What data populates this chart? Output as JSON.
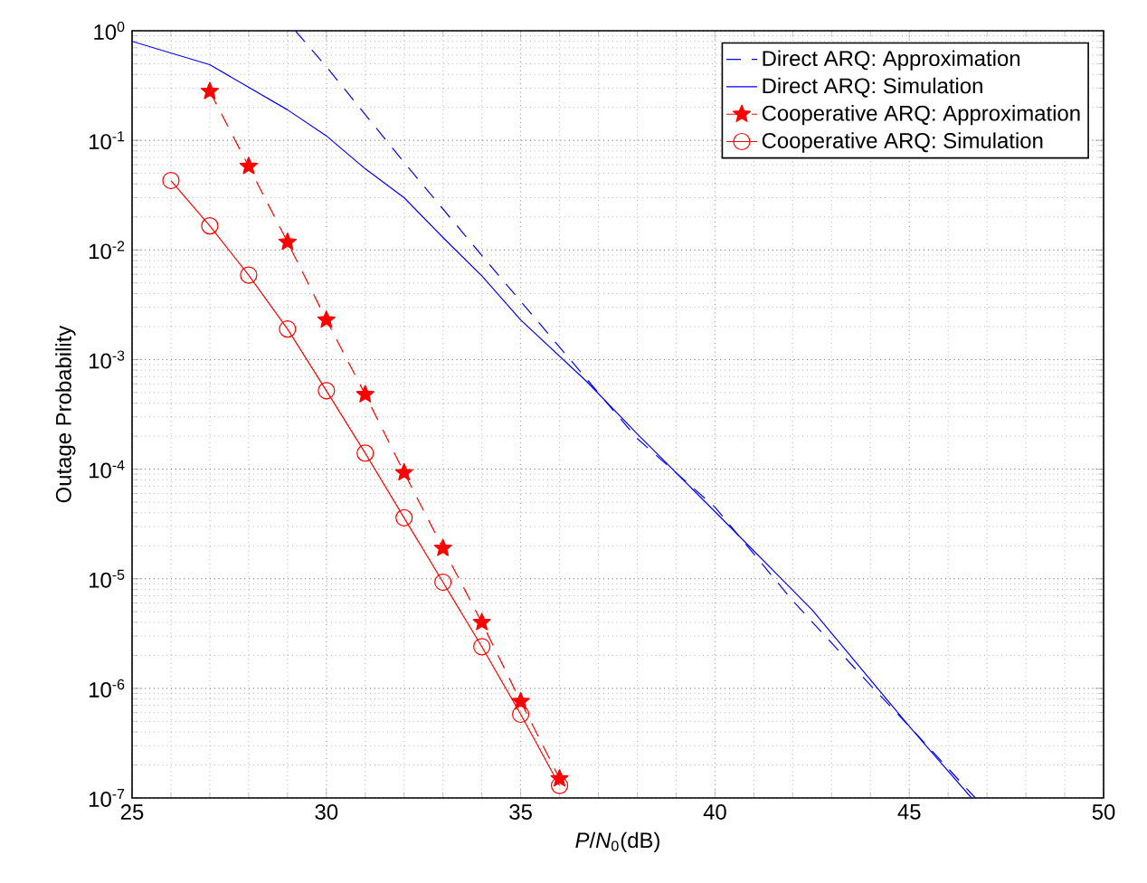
{
  "chart_data": {
    "type": "line",
    "xlabel": "*P*/*N*$_{0}$(dB)",
    "ylabel": "Outage Probability",
    "log": "y",
    "grid": true,
    "legend": "top right",
    "xlim": [
      25,
      50
    ],
    "xticks": [
      25,
      30,
      35,
      40,
      45,
      50
    ],
    "ylim": [
      1e-07,
      1
    ],
    "yticks": [
      {
        "value": 1e-07,
        "label": "10$^{-7}$"
      },
      {
        "value": 1e-06,
        "label": "10$^{-6}$"
      },
      {
        "value": 1e-05,
        "label": "10$^{-5}$"
      },
      {
        "value": 0.0001,
        "label": "10$^{-4}$"
      },
      {
        "value": 0.001,
        "label": "10$^{-3}$"
      },
      {
        "value": 0.01,
        "label": "10$^{-2}$"
      },
      {
        "value": 0.1,
        "label": "10$^{-1}$"
      },
      {
        "value": 1,
        "label": "10$^{0}$"
      }
    ],
    "series": [
      {
        "name": "Direct ARQ: Approximation",
        "color": "#0000ff",
        "line_style": "dashed",
        "marker": "none",
        "x": [
          29.2,
          30,
          32,
          34,
          36,
          38,
          40,
          42,
          44,
          45,
          46.7
        ],
        "values": [
          1,
          0.47,
          0.063,
          0.0089,
          0.0013,
          0.00019,
          4.5e-05,
          6.3e-06,
          1.07e-06,
          4.5e-07,
          1e-07
        ]
      },
      {
        "name": "Direct ARQ: Simulation",
        "color": "#0000ff",
        "line_style": "solid",
        "marker": "none",
        "x": [
          25,
          27,
          29,
          30,
          31,
          32,
          33,
          34,
          35,
          36.7,
          38,
          40,
          42.5,
          45,
          46.6
        ],
        "values": [
          0.8,
          0.49,
          0.19,
          0.11,
          0.055,
          0.03,
          0.013,
          0.0058,
          0.0023,
          0.00063,
          0.00021,
          4.1e-05,
          5.2e-06,
          4.5e-07,
          1e-07
        ]
      },
      {
        "name": "Cooperative ARQ: Approximation",
        "color": "#ff0000",
        "line_style": "dashed",
        "marker": "star",
        "x": [
          27,
          28,
          29,
          30,
          31,
          32,
          33,
          34,
          35,
          36
        ],
        "values": [
          0.28,
          0.058,
          0.0118,
          0.0023,
          0.00048,
          9.3e-05,
          1.9e-05,
          4e-06,
          7.6e-07,
          1.5e-07
        ]
      },
      {
        "name": "Cooperative ARQ: Simulation",
        "color": "#ff0000",
        "line_style": "solid",
        "marker": "circle",
        "x": [
          26,
          27,
          28,
          29,
          30,
          31,
          32,
          33,
          34,
          35,
          36
        ],
        "values": [
          0.043,
          0.0166,
          0.0059,
          0.0019,
          0.00052,
          0.00014,
          3.6e-05,
          9.3e-06,
          2.4e-06,
          5.8e-07,
          1.3e-07
        ]
      }
    ]
  }
}
